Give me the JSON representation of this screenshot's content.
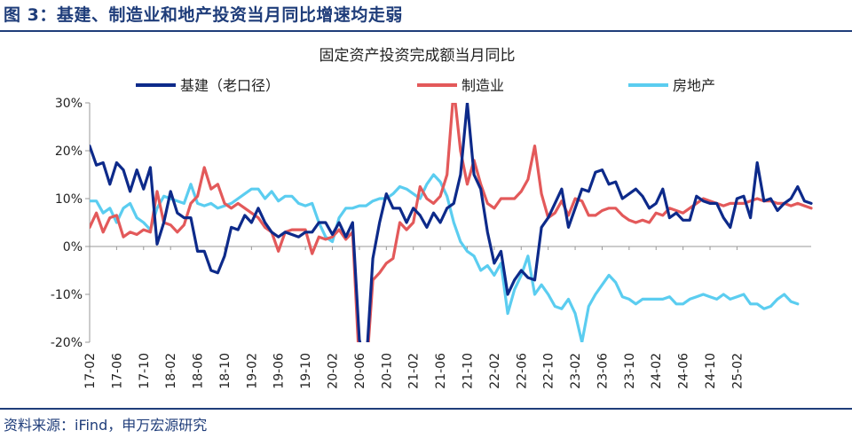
{
  "figure_title": "图 3：基建、制造业和地产投资当月同比增速均走弱",
  "source": "资料来源：iFind，申万宏源研究",
  "chart_data": {
    "type": "line",
    "title": "固定资产投资完成额当月同比",
    "ylim": [
      -20,
      30
    ],
    "yticks": [
      -20,
      -10,
      0,
      10,
      20,
      30
    ],
    "ytick_labels": [
      "-20%",
      "-10%",
      "0%",
      "10%",
      "20%",
      "30%"
    ],
    "grid": false,
    "legend_position": "top",
    "xtick_labels": [
      "17-02",
      "17-06",
      "17-10",
      "18-02",
      "18-06",
      "18-10",
      "19-02",
      "19-06",
      "19-10",
      "20-02",
      "20-06",
      "20-10",
      "21-02",
      "21-06",
      "21-10",
      "22-02",
      "22-06",
      "22-10",
      "23-02",
      "23-06",
      "23-10",
      "24-02",
      "24-06",
      "24-10",
      "25-02"
    ],
    "x_start": "2017-02",
    "series": [
      {
        "name": "基建（老口径）",
        "color": "#0d2a8a",
        "values": [
          21,
          17,
          17.5,
          13,
          17.5,
          16,
          11.5,
          16,
          12,
          16.5,
          0.5,
          5,
          11.5,
          7,
          6,
          6,
          -1,
          -1,
          -5,
          -5.5,
          -2,
          4,
          3.5,
          6.5,
          5,
          8,
          5,
          3,
          2,
          3,
          2.5,
          2,
          3,
          3,
          5,
          5,
          2.5,
          5,
          2,
          5,
          -19.5,
          -25,
          -2.5,
          5,
          11,
          8,
          8,
          5,
          8,
          6.5,
          4,
          7,
          5,
          8,
          9,
          15,
          30,
          15,
          12,
          3,
          -3.5,
          -1,
          -10,
          -7,
          -5,
          -6.5,
          -7,
          4,
          6,
          9,
          12,
          4,
          8,
          12,
          11.5,
          15.5,
          16,
          13,
          13.5,
          10,
          11,
          12,
          10.5,
          8,
          9,
          12,
          6,
          7,
          5.5,
          5.5,
          10.5,
          9.5,
          9,
          9,
          6,
          4,
          10,
          10.5,
          6,
          17.5,
          9.5,
          10,
          7.5,
          9,
          10,
          12.5,
          9.5,
          9
        ]
      },
      {
        "name": "制造业",
        "color": "#e3595a",
        "values": [
          4,
          7,
          3,
          6,
          6.5,
          2,
          3,
          2.5,
          3.5,
          3,
          11.5,
          5,
          4.5,
          3,
          4.5,
          9,
          10.5,
          16.5,
          12,
          13,
          9,
          8,
          9,
          8,
          7,
          6,
          4,
          3,
          -1,
          3,
          3.5,
          3.5,
          3.5,
          -1.5,
          2,
          1.5,
          2,
          3.5,
          1.5,
          3,
          -25,
          -27,
          -7,
          -5.5,
          -3.5,
          -2.5,
          5,
          3.5,
          5,
          12.5,
          10,
          9,
          10.5,
          15,
          33,
          20,
          13,
          18,
          13,
          9,
          8,
          10,
          10,
          10,
          11.5,
          14,
          21,
          11,
          6,
          7,
          9.5,
          6.5,
          10,
          9.5,
          6.5,
          6.5,
          7.5,
          8,
          8,
          6.5,
          5.5,
          5,
          5.5,
          5,
          7,
          6.5,
          8,
          7.5,
          7,
          8,
          9,
          10,
          9.5,
          9,
          8.5,
          9,
          9,
          9,
          9.5,
          10,
          9.5,
          9.5,
          9,
          9,
          8.5,
          9,
          8.5,
          8
        ]
      },
      {
        "name": "房地产",
        "color": "#5bcdf0",
        "values": [
          9.5,
          9.5,
          7,
          8,
          5,
          8,
          9,
          6,
          5,
          3.5,
          8,
          10.5,
          10,
          9.5,
          9,
          13,
          9,
          8.5,
          9,
          8,
          8.5,
          9,
          10,
          11,
          12,
          12,
          10,
          11.5,
          9.5,
          10.5,
          10.5,
          9,
          8.5,
          9,
          5,
          2,
          1,
          6,
          8,
          8,
          8.5,
          8.5,
          9.5,
          10,
          10,
          11,
          12.5,
          12,
          11,
          10,
          13,
          15,
          13.5,
          10.5,
          5,
          1,
          -1,
          -2,
          -5,
          -4,
          -6,
          -3.5,
          -14,
          -9,
          -6,
          -2,
          -10,
          -8,
          -10,
          -12.5,
          -13,
          -11,
          -14,
          -20,
          -12.5,
          -10,
          -8,
          -6,
          -7.5,
          -10.5,
          -11,
          -12,
          -11,
          -11,
          -11,
          -11,
          -10.5,
          -12,
          -12,
          -11,
          -10.5,
          -10,
          -10.5,
          -11,
          -10,
          -11,
          -10.5,
          -10,
          -12,
          -12,
          -13,
          -12.5,
          -11,
          -10,
          -11.5,
          -12
        ]
      }
    ]
  }
}
